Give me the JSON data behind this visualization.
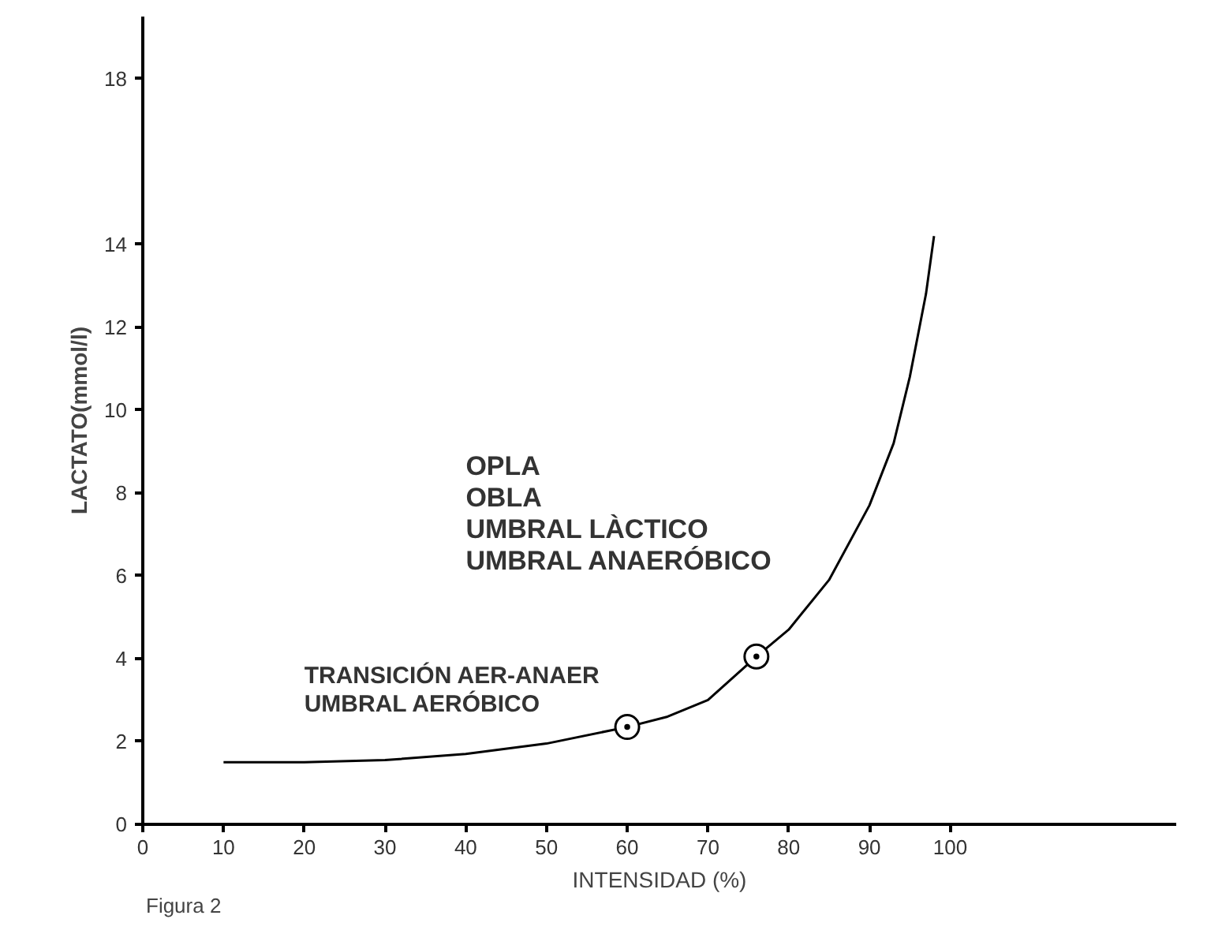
{
  "chart_data": {
    "type": "line",
    "xlabel": "INTENSIDAD (%)",
    "ylabel": "LACTATO(mmol/l)",
    "xlim": [
      0,
      128
    ],
    "ylim": [
      0,
      19.5
    ],
    "xticks": [
      0,
      10,
      20,
      30,
      40,
      50,
      60,
      70,
      80,
      90,
      100
    ],
    "yticks": [
      0,
      2,
      4,
      6,
      8,
      10,
      12,
      14,
      18
    ],
    "grid": false,
    "series": [
      {
        "color": "#000000",
        "marker": "none",
        "x": [
          10,
          20,
          30,
          40,
          50,
          60,
          65,
          70,
          76,
          80,
          85,
          90,
          93,
          95,
          97,
          98
        ],
        "values": [
          1.5,
          1.5,
          1.55,
          1.7,
          1.95,
          2.35,
          2.6,
          3.0,
          4.05,
          4.7,
          5.9,
          7.7,
          9.2,
          10.8,
          12.8,
          14.2
        ]
      },
      {
        "type": "scatter",
        "color": "#000000",
        "marker": "circle",
        "x": [
          60,
          76
        ],
        "values": [
          2.35,
          4.05
        ]
      }
    ],
    "annotations": [
      "OPLA\nOBLA\nUMBRAL LÀCTICO\nUMBRAL ANAERÓBICO",
      "TRANSICIÓN AER-ANAER\nUMBRAL AERÓBICO",
      "Figura 2"
    ]
  }
}
